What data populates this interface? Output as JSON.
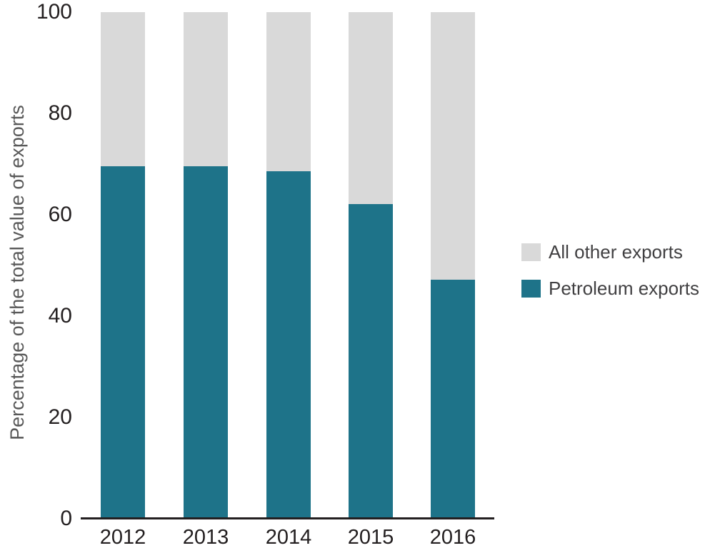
{
  "chart_data": {
    "type": "bar",
    "stacked": true,
    "title": "",
    "xlabel": "",
    "ylabel": "Percentage of the total value of exports",
    "categories": [
      "2012",
      "2013",
      "2014",
      "2015",
      "2016"
    ],
    "series": [
      {
        "name": "Petroleum exports",
        "color": "#1e7389",
        "values": [
          69.5,
          69.5,
          68.5,
          62,
          47
        ]
      },
      {
        "name": "All other exports",
        "color": "#d9d9d9",
        "values": [
          30.5,
          30.5,
          31.5,
          38,
          53
        ]
      }
    ],
    "ylim": [
      0,
      100
    ],
    "yticks": [
      0,
      20,
      40,
      60,
      80,
      100
    ],
    "grid": false,
    "legend_position": "right",
    "legend_order_top_to_bottom": [
      "All other exports",
      "Petroleum exports"
    ]
  },
  "colors": {
    "petroleum": "#1e7389",
    "other": "#d9d9d9",
    "axis_line": "#231f20",
    "tick_label": "#231f20",
    "axis_title": "#595959",
    "legend_text": "#414042",
    "background": "#ffffff"
  }
}
